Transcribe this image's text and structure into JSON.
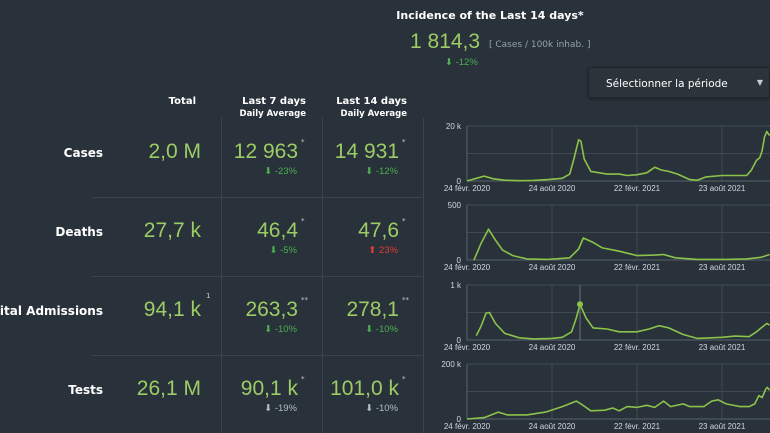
{
  "incidence": {
    "title": "Incidence of the Last 14 days*",
    "value": "1 814,3",
    "unit": "[ Cases / 100k inhab. ]",
    "delta": "-12%",
    "delta_direction": "down"
  },
  "period_select": {
    "label": "Sélectionner la période",
    "icon": "caret-down-icon"
  },
  "columns": {
    "total": "Total",
    "last7": "Last 7 days",
    "last14": "Last 14 days",
    "daily_average": "Daily Average"
  },
  "colors": {
    "value": "#9ccc65",
    "down": "#4caf50",
    "up": "#e53935",
    "neutral": "#b0bec5",
    "line": "#8bc34a",
    "background": "#29323a"
  },
  "rows": [
    {
      "label": "Cases",
      "total": "2,0 M",
      "total_note": "",
      "last7": "12 963",
      "last7_note": "*",
      "last7_delta": "-23%",
      "last7_dir": "down",
      "last14": "14 931",
      "last14_note": "*",
      "last14_delta": "-12%",
      "last14_dir": "down"
    },
    {
      "label": "Deaths",
      "total": "27,7 k",
      "total_note": "",
      "last7": "46,4",
      "last7_note": "*",
      "last7_delta": "-5%",
      "last7_dir": "down",
      "last14": "47,6",
      "last14_note": "*",
      "last14_delta": "23%",
      "last14_dir": "up"
    },
    {
      "label": "Hospital Admissions",
      "total": "94,1 k",
      "total_note": "1",
      "last7": "263,3",
      "last7_note": "**",
      "last7_delta": "-10%",
      "last7_dir": "down",
      "last14": "278,1",
      "last14_note": "**",
      "last14_delta": "-10%",
      "last14_dir": "down"
    },
    {
      "label": "Tests",
      "total": "26,1 M",
      "total_note": "",
      "last7": "90,1 k",
      "last7_note": "*",
      "last7_delta": "-19%",
      "last7_dir": "neutral",
      "last14": "101,0 k",
      "last14_note": "*",
      "last14_delta": "-10%",
      "last14_dir": "neutral"
    }
  ],
  "chart_data": [
    {
      "type": "line",
      "series_of": "Cases",
      "ylim": [
        0,
        20000
      ],
      "yticks": [
        "0",
        "20 k"
      ],
      "xticks": [
        "24 févr. 2020",
        "24 août 2020",
        "22 févr. 2021",
        "23 août 2021"
      ],
      "grid": true,
      "points": [
        [
          "2020-02-24",
          0
        ],
        [
          "2020-03-15",
          1000
        ],
        [
          "2020-04-01",
          1800
        ],
        [
          "2020-04-20",
          800
        ],
        [
          "2020-05-15",
          300
        ],
        [
          "2020-06-15",
          100
        ],
        [
          "2020-07-15",
          200
        ],
        [
          "2020-08-15",
          500
        ],
        [
          "2020-09-15",
          1000
        ],
        [
          "2020-10-01",
          2500
        ],
        [
          "2020-10-10",
          8000
        ],
        [
          "2020-10-20",
          15000
        ],
        [
          "2020-10-25",
          14500
        ],
        [
          "2020-11-01",
          8000
        ],
        [
          "2020-11-15",
          3500
        ],
        [
          "2020-12-20",
          2500
        ],
        [
          "2021-01-15",
          2500
        ],
        [
          "2021-02-01",
          2000
        ],
        [
          "2021-02-22",
          2300
        ],
        [
          "2021-03-15",
          3000
        ],
        [
          "2021-04-01",
          5000
        ],
        [
          "2021-04-15",
          4000
        ],
        [
          "2021-05-01",
          3500
        ],
        [
          "2021-05-20",
          2500
        ],
        [
          "2021-06-15",
          500
        ],
        [
          "2021-07-01",
          300
        ],
        [
          "2021-07-20",
          1500
        ],
        [
          "2021-08-23",
          2000
        ],
        [
          "2021-10-15",
          2000
        ],
        [
          "2021-10-25",
          4000
        ],
        [
          "2021-11-05",
          7500
        ],
        [
          "2021-11-12",
          8500
        ],
        [
          "2021-11-17",
          11000
        ],
        [
          "2021-11-22",
          16000
        ],
        [
          "2021-11-27",
          18000
        ],
        [
          "2021-12-03",
          16500
        ]
      ]
    },
    {
      "type": "line",
      "series_of": "Deaths",
      "ylim": [
        0,
        500
      ],
      "yticks": [
        "0",
        "500"
      ],
      "xticks": [
        "24 févr. 2020",
        "24 août 2020",
        "22 févr. 2021",
        "23 août 2021"
      ],
      "grid": true,
      "points": [
        [
          "2020-03-10",
          0
        ],
        [
          "2020-03-25",
          150
        ],
        [
          "2020-04-10",
          280
        ],
        [
          "2020-04-25",
          180
        ],
        [
          "2020-05-10",
          90
        ],
        [
          "2020-06-01",
          40
        ],
        [
          "2020-07-01",
          10
        ],
        [
          "2020-08-15",
          5
        ],
        [
          "2020-10-01",
          20
        ],
        [
          "2020-10-20",
          100
        ],
        [
          "2020-10-30",
          200
        ],
        [
          "2020-11-20",
          160
        ],
        [
          "2020-12-10",
          110
        ],
        [
          "2021-01-15",
          80
        ],
        [
          "2021-02-22",
          40
        ],
        [
          "2021-04-01",
          45
        ],
        [
          "2021-04-20",
          50
        ],
        [
          "2021-05-15",
          20
        ],
        [
          "2021-07-01",
          5
        ],
        [
          "2021-09-01",
          5
        ],
        [
          "2021-10-15",
          10
        ],
        [
          "2021-11-15",
          25
        ],
        [
          "2021-12-03",
          50
        ]
      ]
    },
    {
      "type": "line",
      "series_of": "Hospital Admissions",
      "ylim": [
        0,
        1000
      ],
      "yticks": [
        "0",
        "1 k"
      ],
      "xticks": [
        "24 févr. 2020",
        "24 août 2020",
        "22 févr. 2021",
        "23 août 2021"
      ],
      "grid": true,
      "highlight": [
        "2020-10-23",
        650
      ],
      "points": [
        [
          "2020-03-15",
          80
        ],
        [
          "2020-03-25",
          250
        ],
        [
          "2020-04-05",
          490
        ],
        [
          "2020-04-12",
          500
        ],
        [
          "2020-04-25",
          300
        ],
        [
          "2020-05-15",
          120
        ],
        [
          "2020-06-15",
          40
        ],
        [
          "2020-07-15",
          20
        ],
        [
          "2020-08-24",
          30
        ],
        [
          "2020-09-15",
          50
        ],
        [
          "2020-10-05",
          150
        ],
        [
          "2020-10-15",
          400
        ],
        [
          "2020-10-23",
          650
        ],
        [
          "2020-11-05",
          400
        ],
        [
          "2020-11-20",
          220
        ],
        [
          "2020-12-20",
          200
        ],
        [
          "2021-01-15",
          150
        ],
        [
          "2021-02-22",
          150
        ],
        [
          "2021-03-20",
          200
        ],
        [
          "2021-04-10",
          260
        ],
        [
          "2021-05-01",
          220
        ],
        [
          "2021-06-01",
          100
        ],
        [
          "2021-07-01",
          30
        ],
        [
          "2021-08-23",
          50
        ],
        [
          "2021-09-20",
          70
        ],
        [
          "2021-10-20",
          60
        ],
        [
          "2021-11-05",
          150
        ],
        [
          "2021-11-15",
          220
        ],
        [
          "2021-11-27",
          300
        ],
        [
          "2021-12-03",
          270
        ]
      ]
    },
    {
      "type": "line",
      "series_of": "Tests",
      "ylim": [
        0,
        200000
      ],
      "yticks": [
        "0",
        "200 k"
      ],
      "xticks": [
        "24 févr. 2020",
        "24 août 2020",
        "22 févr. 2021",
        "23 août 2021"
      ],
      "grid": true,
      "points": [
        [
          "2020-02-24",
          0
        ],
        [
          "2020-04-01",
          5000
        ],
        [
          "2020-05-01",
          25000
        ],
        [
          "2020-05-20",
          15000
        ],
        [
          "2020-07-01",
          15000
        ],
        [
          "2020-08-10",
          25000
        ],
        [
          "2020-09-15",
          45000
        ],
        [
          "2020-10-15",
          65000
        ],
        [
          "2020-10-25",
          55000
        ],
        [
          "2020-11-15",
          30000
        ],
        [
          "2020-12-15",
          32000
        ],
        [
          "2021-01-01",
          40000
        ],
        [
          "2021-01-15",
          30000
        ],
        [
          "2021-02-01",
          45000
        ],
        [
          "2021-02-22",
          42000
        ],
        [
          "2021-03-15",
          50000
        ],
        [
          "2021-04-01",
          42000
        ],
        [
          "2021-04-20",
          65000
        ],
        [
          "2021-05-05",
          45000
        ],
        [
          "2021-06-01",
          55000
        ],
        [
          "2021-06-15",
          45000
        ],
        [
          "2021-07-15",
          45000
        ],
        [
          "2021-08-01",
          65000
        ],
        [
          "2021-08-15",
          70000
        ],
        [
          "2021-09-01",
          55000
        ],
        [
          "2021-10-01",
          45000
        ],
        [
          "2021-10-20",
          45000
        ],
        [
          "2021-11-01",
          55000
        ],
        [
          "2021-11-10",
          85000
        ],
        [
          "2021-11-17",
          78000
        ],
        [
          "2021-11-25",
          110000
        ],
        [
          "2021-11-28",
          115000
        ],
        [
          "2021-12-03",
          105000
        ]
      ]
    }
  ]
}
